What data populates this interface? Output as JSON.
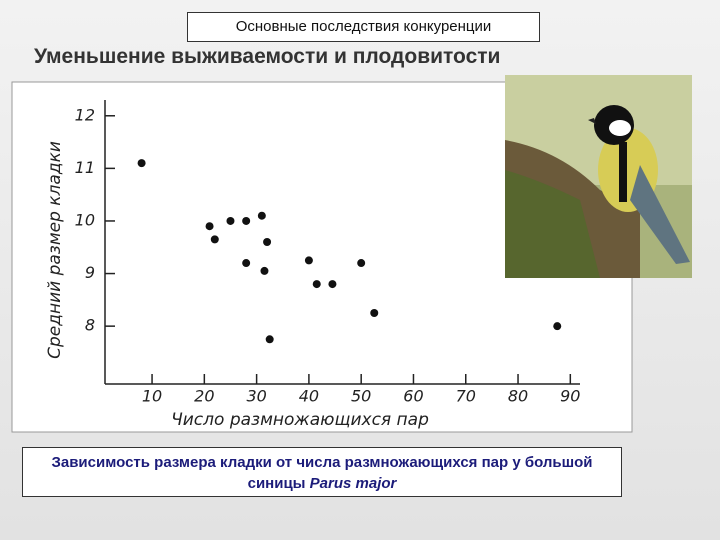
{
  "header": "Основные последствия конкуренции",
  "title": "Уменьшение выживаемости и плодовитости",
  "caption": {
    "text": "Зависимость размера кладки от числа размножающихся пар у большой синицы",
    "species": "Parus major"
  },
  "chart_data": {
    "type": "scatter",
    "x_label": "Число размножающихся пар",
    "y_label": "Средний размер кладки",
    "x": [
      8,
      21,
      22,
      25,
      28,
      31,
      32,
      28,
      31.5,
      32.5,
      40,
      41.5,
      44.5,
      50,
      52.5,
      87.5
    ],
    "values": [
      11.1,
      9.9,
      9.65,
      10.0,
      10.0,
      10.1,
      9.6,
      9.2,
      9.05,
      7.75,
      9.25,
      8.8,
      8.8,
      9.2,
      8.25,
      8.0
    ],
    "color": "#111111",
    "xlim": [
      1,
      93
    ],
    "xticks": [
      10,
      20,
      30,
      40,
      50,
      60,
      70,
      80,
      90
    ],
    "ylim": [
      6.9,
      12.3
    ],
    "yticks": [
      8,
      9,
      10,
      11,
      12
    ],
    "grid": false
  }
}
